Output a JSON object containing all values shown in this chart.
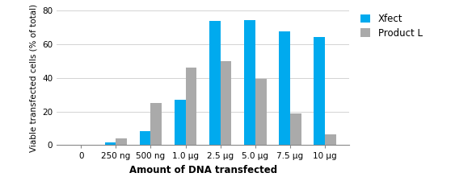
{
  "categories": [
    "0",
    "250 ng",
    "500 ng",
    "1.0 μg",
    "2.5 μg",
    "5.0 μg",
    "7.5 μg",
    "10 μg"
  ],
  "xfect_values": [
    0,
    1.5,
    8.5,
    27,
    74,
    74.5,
    67.5,
    64.5
  ],
  "product_l_values": [
    0,
    4,
    25,
    46,
    50,
    39.5,
    19,
    6.5
  ],
  "xfect_color": "#00AAEE",
  "product_l_color": "#AAAAAA",
  "ylabel": "Viable transfected cells (% of total)",
  "xlabel": "Amount of DNA transfected",
  "ylim": [
    0,
    80
  ],
  "yticks": [
    0,
    20,
    40,
    60,
    80
  ],
  "legend_labels": [
    "Xfect",
    "Product L"
  ],
  "bar_width": 0.32,
  "figsize": [
    5.84,
    2.2
  ],
  "dpi": 100,
  "grid_color": "#cccccc",
  "tick_fontsize": 7.5,
  "ylabel_fontsize": 7.5,
  "xlabel_fontsize": 8.5,
  "legend_fontsize": 8.5
}
